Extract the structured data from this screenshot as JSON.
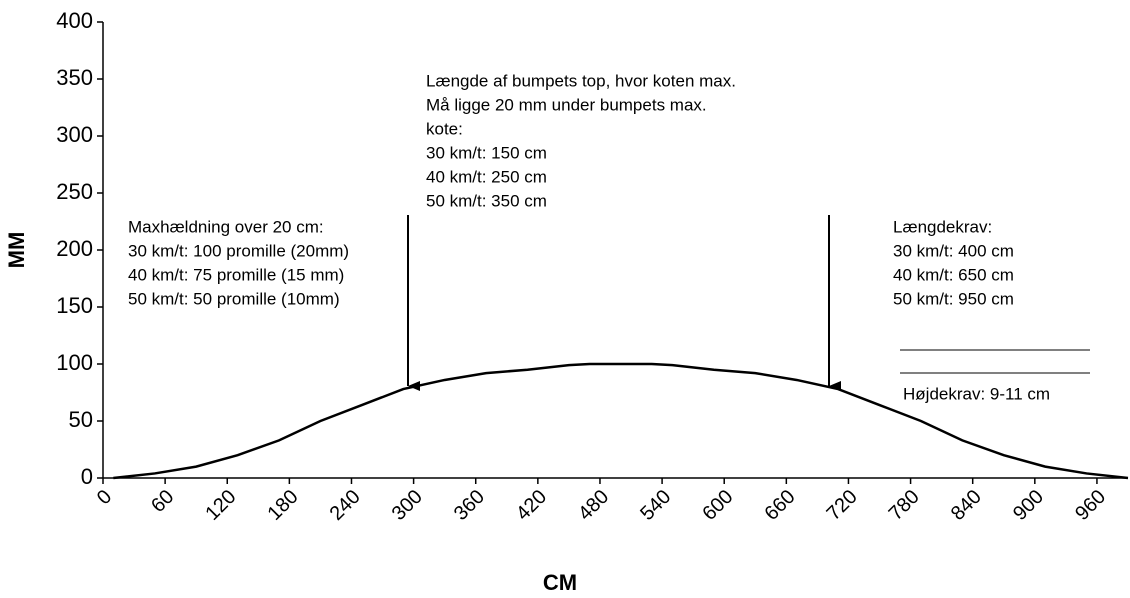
{
  "chart_data": {
    "type": "line",
    "x_label": "CM",
    "y_label": "MM",
    "x": [
      10,
      50,
      90,
      130,
      170,
      210,
      250,
      290,
      330,
      370,
      410,
      450,
      470,
      530,
      550,
      590,
      630,
      670,
      710,
      750,
      790,
      830,
      870,
      910,
      950,
      990
    ],
    "series": [
      {
        "color": "#000000",
        "values": [
          0,
          4,
          10,
          20,
          33,
          50,
          64,
          78,
          86,
          92,
          95,
          99,
          100,
          100,
          99,
          95,
          92,
          86,
          78,
          64,
          50,
          33,
          20,
          10,
          4,
          0
        ]
      }
    ],
    "xlim": [
      0,
      990
    ],
    "xticks": [
      0,
      60,
      120,
      180,
      240,
      300,
      360,
      420,
      480,
      540,
      600,
      660,
      720,
      780,
      840,
      900,
      960
    ],
    "ylim": [
      0,
      400
    ],
    "yticks": [
      0,
      50,
      100,
      150,
      200,
      250,
      300,
      350,
      400
    ],
    "annotations": [
      [
        "Længde af bumpets top, hvor koten max.",
        "Må ligge 20 mm under bumpets max.",
        "kote:",
        "30 km/t: 150 cm",
        "40 km/t: 250 cm",
        "50 km/t: 350 cm"
      ],
      [
        "Maxhældning over 20 cm:",
        "30 km/t: 100 promille (20mm)",
        "40 km/t: 75 promille (15 mm)",
        "50 km/t: 50 promille (10mm)"
      ],
      [
        "Længdekrav:",
        "30 km/t: 400 cm",
        "40 km/t: 650 cm",
        "50 km/t: 950 cm"
      ],
      [
        "Højdekrav: 9-11 cm"
      ]
    ]
  }
}
